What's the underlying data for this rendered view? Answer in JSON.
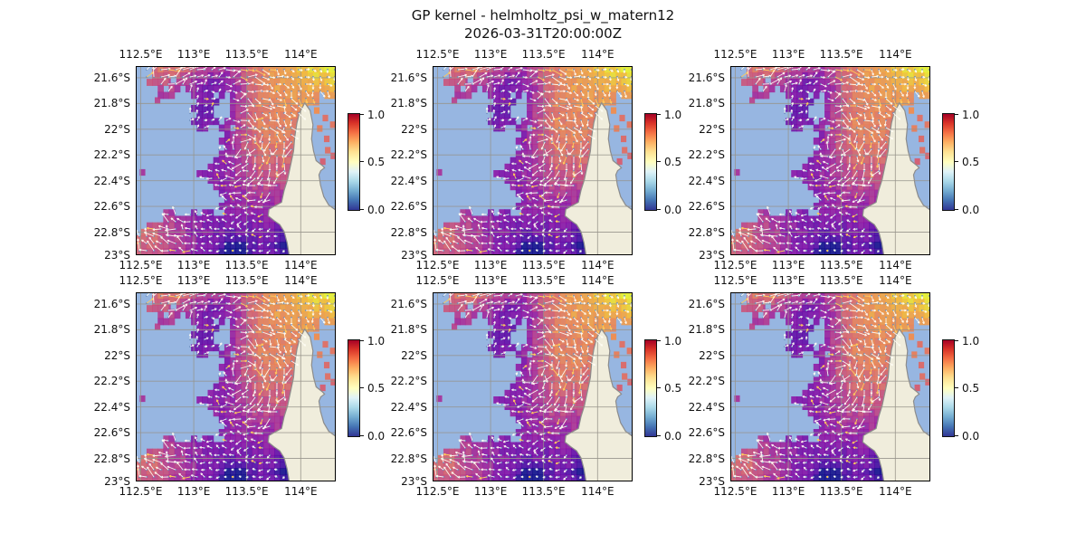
{
  "chart_data": {
    "type": "heatmap",
    "title": "GP kernel - helmholtz_psi_w_matern12",
    "subtitle": "2026-03-31T20:00:00Z",
    "grid": {
      "rows": 2,
      "cols": 3,
      "panel_count": 6,
      "panels_identical": true
    },
    "x_ticks": [
      "112.5°E",
      "113°E",
      "113.5°E",
      "114°E"
    ],
    "y_ticks": [
      "21.6°S",
      "21.8°S",
      "22°S",
      "22.2°S",
      "22.4°S",
      "22.6°S",
      "22.8°S",
      "23°S"
    ],
    "x_range": [
      112.45,
      114.25
    ],
    "y_range": [
      -23.0,
      -21.5
    ],
    "grid_on": true,
    "colorbar": {
      "vmin": 0.0,
      "vmax": 1.0,
      "ticks": [
        "1.0",
        "0.5",
        "0.0"
      ],
      "colormap_top_to_bottom": [
        "#a50026",
        "#d73027",
        "#f46d43",
        "#fdae61",
        "#fee090",
        "#ffffbf",
        "#e0f3f8",
        "#abd9e9",
        "#74add1",
        "#4575b4",
        "#313695"
      ]
    },
    "map": {
      "ocean_color": "#97b6e1",
      "land_color": "#f0eddc",
      "coastline_color": "#8c8c8c",
      "gridline_color": "#96938b",
      "field_colormap_plasma": [
        "#0d0887",
        "#5402a3",
        "#8b0aa5",
        "#b93289",
        "#db5c68",
        "#f48849",
        "#febc2a",
        "#f0f921"
      ],
      "quiver_color": "#fffdf4",
      "quiver_accent_color": "#ffc85c",
      "dot_color": "#698cbe"
    }
  }
}
